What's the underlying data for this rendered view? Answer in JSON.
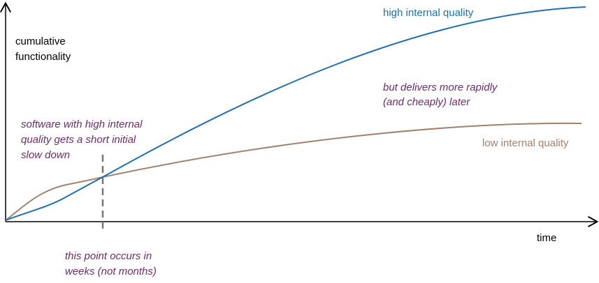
{
  "axes": {
    "y_label": [
      "cumulative",
      "functionality"
    ],
    "x_label": "time"
  },
  "curves": {
    "high": {
      "label": "high internal quality"
    },
    "low": {
      "label": "low internal quality"
    }
  },
  "annotations": {
    "slow_down": [
      "software with high internal",
      "quality gets a short initial",
      "slow down"
    ],
    "later": [
      "but delivers more rapidly",
      "(and cheaply) later"
    ],
    "crossover": [
      "this point occurs in",
      "weeks (not months)"
    ]
  }
}
